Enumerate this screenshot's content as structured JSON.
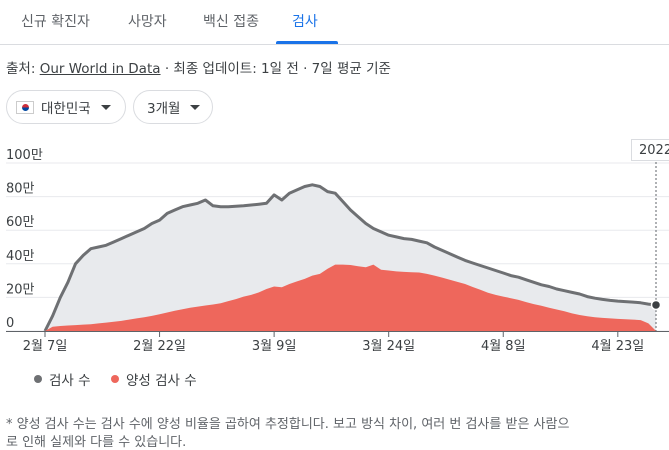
{
  "tabs": [
    {
      "label": "신규 확진자"
    },
    {
      "label": "사망자"
    },
    {
      "label": "백신 접종"
    },
    {
      "label": "검사",
      "active": true
    }
  ],
  "source": {
    "prefix": "출처: ",
    "link": "Our World in Data",
    "suffix": " · 최종 업데이트: 1일 전 · 7일 평균 기준"
  },
  "filters": {
    "country": "대한민국",
    "range": "3개월"
  },
  "tooltip_year": "2022",
  "legend": {
    "tests": "검사 수",
    "positive": "양성 검사 수"
  },
  "footnote": "* 양성 검사 수는 검사 수에 양성 비율을 곱하여 추정합니다. 보고 방식 차이, 여러 번 검사를 받은 사람으",
  "footnote2": "로 인해 실제와 다를 수 있습니다.",
  "colors": {
    "tests_line": "#6e7073",
    "tests_fill": "#e8eaed",
    "positive_fill": "#ee675c",
    "active_tab": "#1a73e8"
  },
  "chart_data": {
    "type": "area",
    "ylim": [
      0,
      1000000
    ],
    "y_ticks": [
      {
        "value": 0,
        "label": "0"
      },
      {
        "value": 200000,
        "label": "20만"
      },
      {
        "value": 400000,
        "label": "40만"
      },
      {
        "value": 600000,
        "label": "60만"
      },
      {
        "value": 800000,
        "label": "80만"
      },
      {
        "value": 1000000,
        "label": "100만"
      }
    ],
    "x_ticks": [
      {
        "day": 0,
        "label": "2월 7일"
      },
      {
        "day": 15,
        "label": "2월 22일"
      },
      {
        "day": 30,
        "label": "3월 9일"
      },
      {
        "day": 45,
        "label": "3월 24일"
      },
      {
        "day": 60,
        "label": "4월 8일"
      },
      {
        "day": 75,
        "label": "4월 23일"
      }
    ],
    "x_range_days": [
      0,
      80
    ],
    "series": [
      {
        "name": "검사 수",
        "points": [
          [
            0,
            0
          ],
          [
            1,
            90000
          ],
          [
            2,
            200000
          ],
          [
            3,
            290000
          ],
          [
            4,
            400000
          ],
          [
            5,
            450000
          ],
          [
            6,
            490000
          ],
          [
            7,
            500000
          ],
          [
            8,
            510000
          ],
          [
            9,
            530000
          ],
          [
            10,
            550000
          ],
          [
            11,
            570000
          ],
          [
            12,
            590000
          ],
          [
            13,
            610000
          ],
          [
            14,
            640000
          ],
          [
            15,
            660000
          ],
          [
            16,
            700000
          ],
          [
            17,
            720000
          ],
          [
            18,
            740000
          ],
          [
            19,
            750000
          ],
          [
            20,
            760000
          ],
          [
            21,
            780000
          ],
          [
            22,
            745000
          ],
          [
            23,
            740000
          ],
          [
            24,
            740000
          ],
          [
            25,
            742000
          ],
          [
            26,
            745000
          ],
          [
            27,
            750000
          ],
          [
            28,
            755000
          ],
          [
            29,
            760000
          ],
          [
            30,
            810000
          ],
          [
            31,
            780000
          ],
          [
            32,
            820000
          ],
          [
            33,
            840000
          ],
          [
            34,
            860000
          ],
          [
            35,
            870000
          ],
          [
            36,
            860000
          ],
          [
            37,
            830000
          ],
          [
            38,
            820000
          ],
          [
            39,
            770000
          ],
          [
            40,
            720000
          ],
          [
            41,
            680000
          ],
          [
            42,
            640000
          ],
          [
            43,
            610000
          ],
          [
            44,
            590000
          ],
          [
            45,
            570000
          ],
          [
            46,
            560000
          ],
          [
            47,
            550000
          ],
          [
            48,
            545000
          ],
          [
            49,
            535000
          ],
          [
            50,
            525000
          ],
          [
            51,
            500000
          ],
          [
            52,
            480000
          ],
          [
            53,
            460000
          ],
          [
            54,
            440000
          ],
          [
            55,
            420000
          ],
          [
            56,
            405000
          ],
          [
            57,
            390000
          ],
          [
            58,
            375000
          ],
          [
            59,
            360000
          ],
          [
            60,
            345000
          ],
          [
            61,
            330000
          ],
          [
            62,
            320000
          ],
          [
            63,
            305000
          ],
          [
            64,
            290000
          ],
          [
            65,
            275000
          ],
          [
            66,
            265000
          ],
          [
            67,
            250000
          ],
          [
            68,
            240000
          ],
          [
            69,
            230000
          ],
          [
            70,
            220000
          ],
          [
            71,
            205000
          ],
          [
            72,
            195000
          ],
          [
            73,
            188000
          ],
          [
            74,
            182000
          ],
          [
            75,
            178000
          ],
          [
            76,
            175000
          ],
          [
            77,
            172000
          ],
          [
            78,
            168000
          ],
          [
            79,
            160000
          ],
          [
            80,
            155000
          ]
        ]
      },
      {
        "name": "양성 검사 수",
        "points": [
          [
            0,
            0
          ],
          [
            1,
            25000
          ],
          [
            2,
            30000
          ],
          [
            3,
            33000
          ],
          [
            4,
            35000
          ],
          [
            5,
            38000
          ],
          [
            6,
            40000
          ],
          [
            7,
            45000
          ],
          [
            8,
            50000
          ],
          [
            9,
            55000
          ],
          [
            10,
            60000
          ],
          [
            11,
            68000
          ],
          [
            12,
            75000
          ],
          [
            13,
            82000
          ],
          [
            14,
            90000
          ],
          [
            15,
            100000
          ],
          [
            16,
            110000
          ],
          [
            17,
            120000
          ],
          [
            18,
            130000
          ],
          [
            19,
            138000
          ],
          [
            20,
            145000
          ],
          [
            21,
            152000
          ],
          [
            22,
            158000
          ],
          [
            23,
            165000
          ],
          [
            24,
            178000
          ],
          [
            25,
            190000
          ],
          [
            26,
            205000
          ],
          [
            27,
            215000
          ],
          [
            28,
            230000
          ],
          [
            29,
            250000
          ],
          [
            30,
            265000
          ],
          [
            31,
            260000
          ],
          [
            32,
            280000
          ],
          [
            33,
            295000
          ],
          [
            34,
            310000
          ],
          [
            35,
            330000
          ],
          [
            36,
            340000
          ],
          [
            37,
            370000
          ],
          [
            38,
            395000
          ],
          [
            39,
            395000
          ],
          [
            40,
            393000
          ],
          [
            41,
            385000
          ],
          [
            42,
            380000
          ],
          [
            43,
            395000
          ],
          [
            44,
            365000
          ],
          [
            45,
            360000
          ],
          [
            46,
            355000
          ],
          [
            47,
            352000
          ],
          [
            48,
            350000
          ],
          [
            49,
            348000
          ],
          [
            50,
            340000
          ],
          [
            51,
            330000
          ],
          [
            52,
            318000
          ],
          [
            53,
            305000
          ],
          [
            54,
            292000
          ],
          [
            55,
            280000
          ],
          [
            56,
            262000
          ],
          [
            57,
            245000
          ],
          [
            58,
            228000
          ],
          [
            59,
            215000
          ],
          [
            60,
            205000
          ],
          [
            61,
            195000
          ],
          [
            62,
            185000
          ],
          [
            63,
            172000
          ],
          [
            64,
            160000
          ],
          [
            65,
            150000
          ],
          [
            66,
            138000
          ],
          [
            67,
            128000
          ],
          [
            68,
            118000
          ],
          [
            69,
            105000
          ],
          [
            70,
            95000
          ],
          [
            71,
            88000
          ],
          [
            72,
            82000
          ],
          [
            73,
            78000
          ],
          [
            74,
            75000
          ],
          [
            75,
            72000
          ],
          [
            76,
            70000
          ],
          [
            77,
            68000
          ],
          [
            78,
            65000
          ],
          [
            79,
            45000
          ],
          [
            80,
            0
          ]
        ]
      }
    ]
  }
}
